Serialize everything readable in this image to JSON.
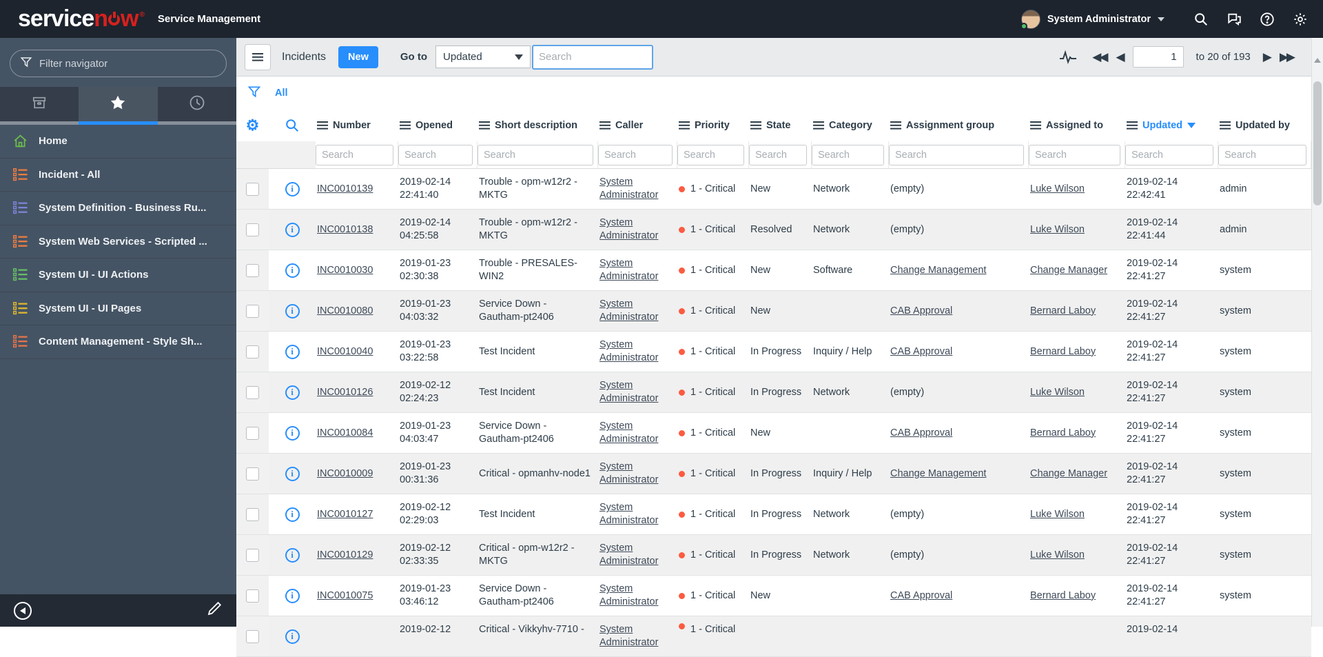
{
  "header": {
    "logo_service": "service",
    "logo_now_n": "n",
    "logo_now_w": "w",
    "reg_mark": "®",
    "app_title": "Service Management",
    "user_name": "System Administrator"
  },
  "sidebar": {
    "filter_placeholder": "Filter navigator",
    "tabs": [
      {
        "name": "all-applications",
        "icon": "archive-box",
        "active": false
      },
      {
        "name": "favorites",
        "icon": "star",
        "active": true
      },
      {
        "name": "history",
        "icon": "clock",
        "active": false
      }
    ],
    "menu": [
      {
        "label": "Home",
        "icon": "home",
        "color": "#6dbe4b"
      },
      {
        "label": "Incident - All",
        "icon": "list",
        "color": "#ee7d40"
      },
      {
        "label": "System Definition - Business Ru...",
        "icon": "list",
        "color": "#8083d8"
      },
      {
        "label": "System Web Services - Scripted ...",
        "icon": "list",
        "color": "#ee7d40"
      },
      {
        "label": "System UI - UI Actions",
        "icon": "list",
        "color": "#66bf67"
      },
      {
        "label": "System UI - UI Pages",
        "icon": "list",
        "color": "#dfb62e"
      },
      {
        "label": "Content Management - Style Sh...",
        "icon": "list",
        "color": "#e8734a"
      }
    ]
  },
  "toolbar": {
    "title": "Incidents",
    "new_button": "New",
    "goto_label": "Go to",
    "goto_value": "Updated",
    "search_placeholder": "Search",
    "pagination": {
      "page": "1",
      "range": "to 20 of 193"
    }
  },
  "breadcrumb": {
    "all": "All"
  },
  "table": {
    "search_placeholder": "Search",
    "columns": [
      {
        "key": "number",
        "label": "Number"
      },
      {
        "key": "opened",
        "label": "Opened"
      },
      {
        "key": "short_description",
        "label": "Short description"
      },
      {
        "key": "caller",
        "label": "Caller"
      },
      {
        "key": "priority",
        "label": "Priority"
      },
      {
        "key": "state",
        "label": "State"
      },
      {
        "key": "category",
        "label": "Category"
      },
      {
        "key": "assignment_group",
        "label": "Assignment group"
      },
      {
        "key": "assigned_to",
        "label": "Assigned to"
      },
      {
        "key": "updated",
        "label": "Updated",
        "sorted": "desc"
      },
      {
        "key": "updated_by",
        "label": "Updated by"
      }
    ],
    "rows": [
      {
        "number": "INC0010139",
        "opened": "2019-02-14 22:41:40",
        "short_description": "Trouble - opm-w12r2 - MKTG",
        "caller": "System Administrator",
        "priority": "1 - Critical",
        "state": "New",
        "category": "Network",
        "assignment_group": "(empty)",
        "assignment_group_is_link": false,
        "assigned_to": "Luke Wilson",
        "updated": "2019-02-14 22:42:41",
        "updated_by": "admin"
      },
      {
        "number": "INC0010138",
        "opened": "2019-02-14 04:25:58",
        "short_description": "Trouble - opm-w12r2 - MKTG",
        "caller": "System Administrator",
        "priority": "1 - Critical",
        "state": "Resolved",
        "category": "Network",
        "assignment_group": "(empty)",
        "assignment_group_is_link": false,
        "assigned_to": "Luke Wilson",
        "updated": "2019-02-14 22:41:44",
        "updated_by": "admin"
      },
      {
        "number": "INC0010030",
        "opened": "2019-01-23 02:30:38",
        "short_description": "Trouble - PRESALES-WIN2",
        "caller": "System Administrator",
        "priority": "1 - Critical",
        "state": "New",
        "category": "Software",
        "assignment_group": "Change Management",
        "assignment_group_is_link": true,
        "assigned_to": "Change Manager",
        "updated": "2019-02-14 22:41:27",
        "updated_by": "system"
      },
      {
        "number": "INC0010080",
        "opened": "2019-01-23 04:03:32",
        "short_description": "Service Down - Gautham-pt2406",
        "caller": "System Administrator",
        "priority": "1 - Critical",
        "state": "New",
        "category": "",
        "assignment_group": "CAB Approval",
        "assignment_group_is_link": true,
        "assigned_to": "Bernard Laboy",
        "updated": "2019-02-14 22:41:27",
        "updated_by": "system"
      },
      {
        "number": "INC0010040",
        "opened": "2019-01-23 03:22:58",
        "short_description": "Test Incident",
        "caller": "System Administrator",
        "priority": "1 - Critical",
        "state": "In Progress",
        "category": "Inquiry / Help",
        "assignment_group": "CAB Approval",
        "assignment_group_is_link": true,
        "assigned_to": "Bernard Laboy",
        "updated": "2019-02-14 22:41:27",
        "updated_by": "system"
      },
      {
        "number": "INC0010126",
        "opened": "2019-02-12 02:24:23",
        "short_description": "Test Incident",
        "caller": "System Administrator",
        "priority": "1 - Critical",
        "state": "In Progress",
        "category": "Network",
        "assignment_group": "(empty)",
        "assignment_group_is_link": false,
        "assigned_to": "Luke Wilson",
        "updated": "2019-02-14 22:41:27",
        "updated_by": "system"
      },
      {
        "number": "INC0010084",
        "opened": "2019-01-23 04:03:47",
        "short_description": "Service Down - Gautham-pt2406",
        "caller": "System Administrator",
        "priority": "1 - Critical",
        "state": "New",
        "category": "",
        "assignment_group": "CAB Approval",
        "assignment_group_is_link": true,
        "assigned_to": "Bernard Laboy",
        "updated": "2019-02-14 22:41:27",
        "updated_by": "system"
      },
      {
        "number": "INC0010009",
        "opened": "2019-01-23 00:31:36",
        "short_description": "Critical - opmanhv-node1",
        "caller": "System Administrator",
        "priority": "1 - Critical",
        "state": "In Progress",
        "category": "Inquiry / Help",
        "assignment_group": "Change Management",
        "assignment_group_is_link": true,
        "assigned_to": "Change Manager",
        "updated": "2019-02-14 22:41:27",
        "updated_by": "system"
      },
      {
        "number": "INC0010127",
        "opened": "2019-02-12 02:29:03",
        "short_description": "Test Incident",
        "caller": "System Administrator",
        "priority": "1 - Critical",
        "state": "In Progress",
        "category": "Network",
        "assignment_group": "(empty)",
        "assignment_group_is_link": false,
        "assigned_to": "Luke Wilson",
        "updated": "2019-02-14 22:41:27",
        "updated_by": "system"
      },
      {
        "number": "INC0010129",
        "opened": "2019-02-12 02:33:35",
        "short_description": "Critical - opm-w12r2 - MKTG",
        "caller": "System Administrator",
        "priority": "1 - Critical",
        "state": "In Progress",
        "category": "Network",
        "assignment_group": "(empty)",
        "assignment_group_is_link": false,
        "assigned_to": "Luke Wilson",
        "updated": "2019-02-14 22:41:27",
        "updated_by": "system"
      },
      {
        "number": "INC0010075",
        "opened": "2019-01-23 03:46:12",
        "short_description": "Service Down - Gautham-pt2406",
        "caller": "System Administrator",
        "priority": "1 - Critical",
        "state": "New",
        "category": "",
        "assignment_group": "CAB Approval",
        "assignment_group_is_link": true,
        "assigned_to": "Bernard Laboy",
        "updated": "2019-02-14 22:41:27",
        "updated_by": "system"
      }
    ],
    "partial_row": {
      "number": "",
      "opened": "2019-02-12",
      "short_description": "Critical - Vikkyhv-7710 -",
      "caller": "System Administrator",
      "priority": "1 - Critical",
      "state": "",
      "category": "",
      "assignment_group": "",
      "assignment_group_is_link": false,
      "assigned_to": "",
      "updated": "2019-02-14",
      "updated_by": ""
    }
  },
  "colors": {
    "accent_blue": "#278efc",
    "priority_red": "#fc5b41",
    "header_bg": "#1d242e",
    "sidebar_bg": "#455464",
    "logo_red": "#d6211e",
    "presence_green": "#51c06e"
  }
}
